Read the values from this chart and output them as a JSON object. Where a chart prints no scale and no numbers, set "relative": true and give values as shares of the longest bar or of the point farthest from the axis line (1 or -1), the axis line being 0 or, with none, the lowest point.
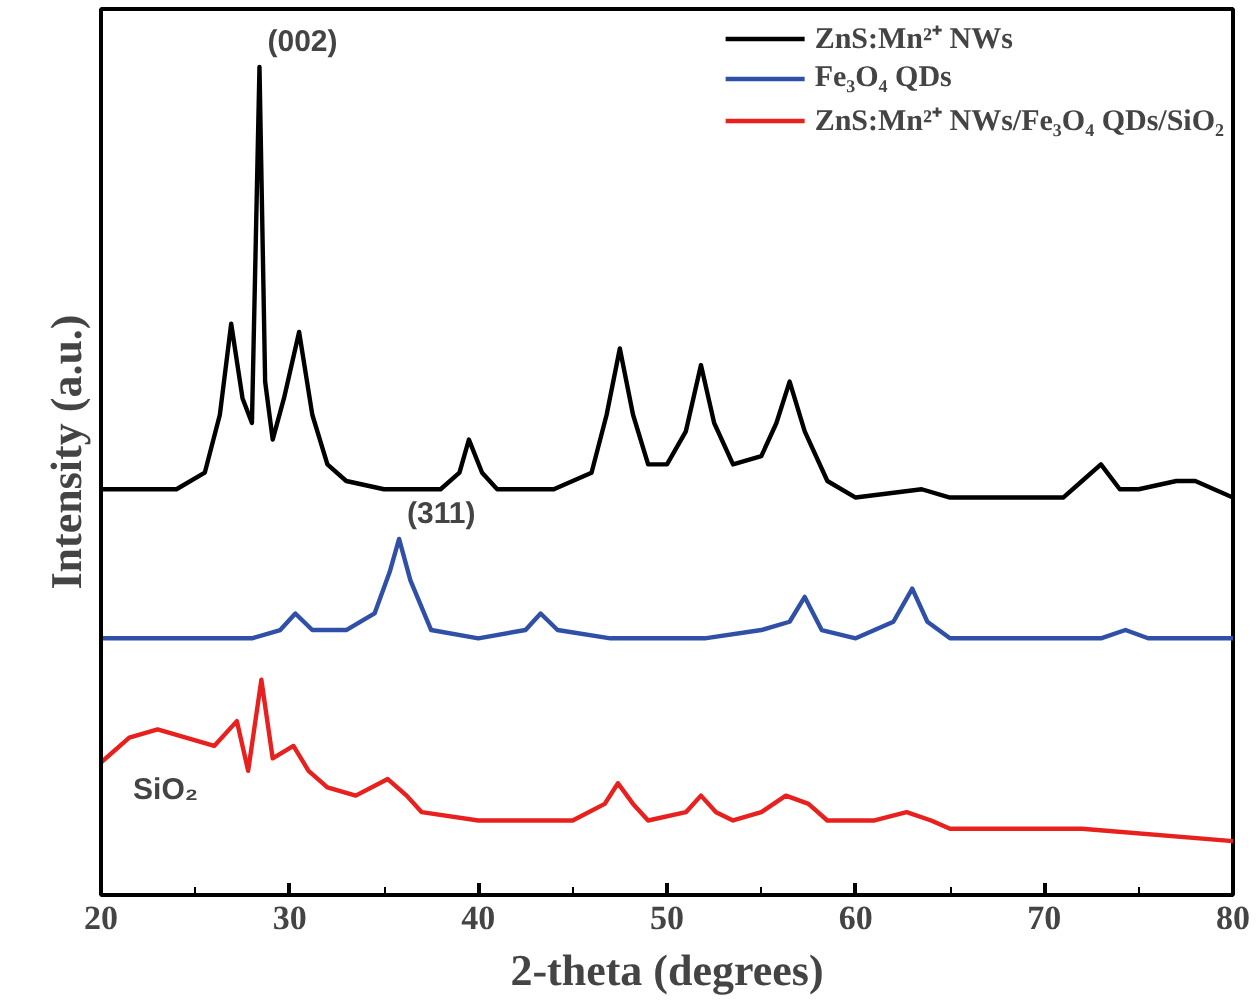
{
  "chart_data": {
    "type": "line",
    "relative": true,
    "xlabel": "2-theta (degrees)",
    "ylabel": "Intensity (a.u.)",
    "xlim": [
      20,
      80
    ],
    "xticks": [
      20,
      30,
      40,
      50,
      60,
      70,
      80
    ],
    "legend": "top right",
    "grid": false,
    "series": [
      {
        "name": "ZnS:Mn²⁺ NWs",
        "color": "#000000",
        "x": [
          20,
          24,
          25.5,
          26.3,
          26.9,
          27.5,
          28.0,
          28.4,
          28.7,
          29.1,
          29.7,
          30.5,
          31.2,
          32,
          33,
          35,
          38,
          39,
          39.5,
          40.2,
          41,
          44,
          46,
          46.8,
          47.5,
          48.2,
          49,
          50,
          51,
          51.8,
          52.5,
          53.5,
          55,
          55.8,
          56.5,
          57.3,
          58.5,
          60,
          63.5,
          65,
          71,
          72,
          73,
          74,
          75,
          77,
          78,
          80
        ],
        "values": [
          0.49,
          0.49,
          0.51,
          0.58,
          0.69,
          0.6,
          0.57,
          1.0,
          0.62,
          0.55,
          0.6,
          0.68,
          0.58,
          0.52,
          0.5,
          0.49,
          0.49,
          0.51,
          0.55,
          0.51,
          0.49,
          0.49,
          0.51,
          0.58,
          0.66,
          0.58,
          0.52,
          0.52,
          0.56,
          0.64,
          0.57,
          0.52,
          0.53,
          0.57,
          0.62,
          0.56,
          0.5,
          0.48,
          0.49,
          0.48,
          0.48,
          0.5,
          0.52,
          0.49,
          0.49,
          0.5,
          0.5,
          0.48
        ]
      },
      {
        "name": "Fe₃O₄ QDs",
        "color": "#3050a8",
        "x": [
          20,
          25,
          28,
          29.5,
          30.3,
          31.2,
          33,
          34.5,
          35.3,
          35.8,
          36.4,
          37.5,
          40,
          42.5,
          43.3,
          44.2,
          47,
          52,
          55,
          56.5,
          57.3,
          58.2,
          60,
          62,
          63,
          63.8,
          65,
          73,
          74.3,
          75.5,
          80
        ],
        "values": [
          0.31,
          0.31,
          0.31,
          0.32,
          0.34,
          0.32,
          0.32,
          0.34,
          0.39,
          0.43,
          0.38,
          0.32,
          0.31,
          0.32,
          0.34,
          0.32,
          0.31,
          0.31,
          0.32,
          0.33,
          0.36,
          0.32,
          0.31,
          0.33,
          0.37,
          0.33,
          0.31,
          0.31,
          0.32,
          0.31,
          0.31
        ]
      },
      {
        "name": "ZnS:Mn²⁺ NWs/Fe₃O₄ QDs/SiO₂",
        "color": "#e8201e",
        "x": [
          20,
          21.5,
          23,
          24.5,
          26,
          27.2,
          27.8,
          28.5,
          29.1,
          30.2,
          31,
          32,
          33.5,
          35.2,
          36.2,
          37,
          40,
          45,
          46.7,
          47.4,
          48.2,
          49,
          51,
          51.8,
          52.6,
          53.5,
          55,
          56.3,
          57.5,
          58.5,
          61,
          62.7,
          64,
          65,
          72,
          80
        ],
        "values": [
          0.16,
          0.19,
          0.2,
          0.19,
          0.18,
          0.21,
          0.15,
          0.26,
          0.165,
          0.18,
          0.15,
          0.13,
          0.12,
          0.14,
          0.12,
          0.1,
          0.09,
          0.09,
          0.11,
          0.135,
          0.11,
          0.09,
          0.1,
          0.12,
          0.1,
          0.09,
          0.1,
          0.12,
          0.11,
          0.09,
          0.09,
          0.1,
          0.09,
          0.08,
          0.08,
          0.065
        ]
      }
    ],
    "annotations": [
      {
        "text": "(002)",
        "x": 28.4,
        "y": 1.0
      },
      {
        "text": "(311)",
        "x": 35.8,
        "y": 0.43
      },
      {
        "text": "SiO₂",
        "x": 23,
        "y": 0.2
      }
    ]
  }
}
